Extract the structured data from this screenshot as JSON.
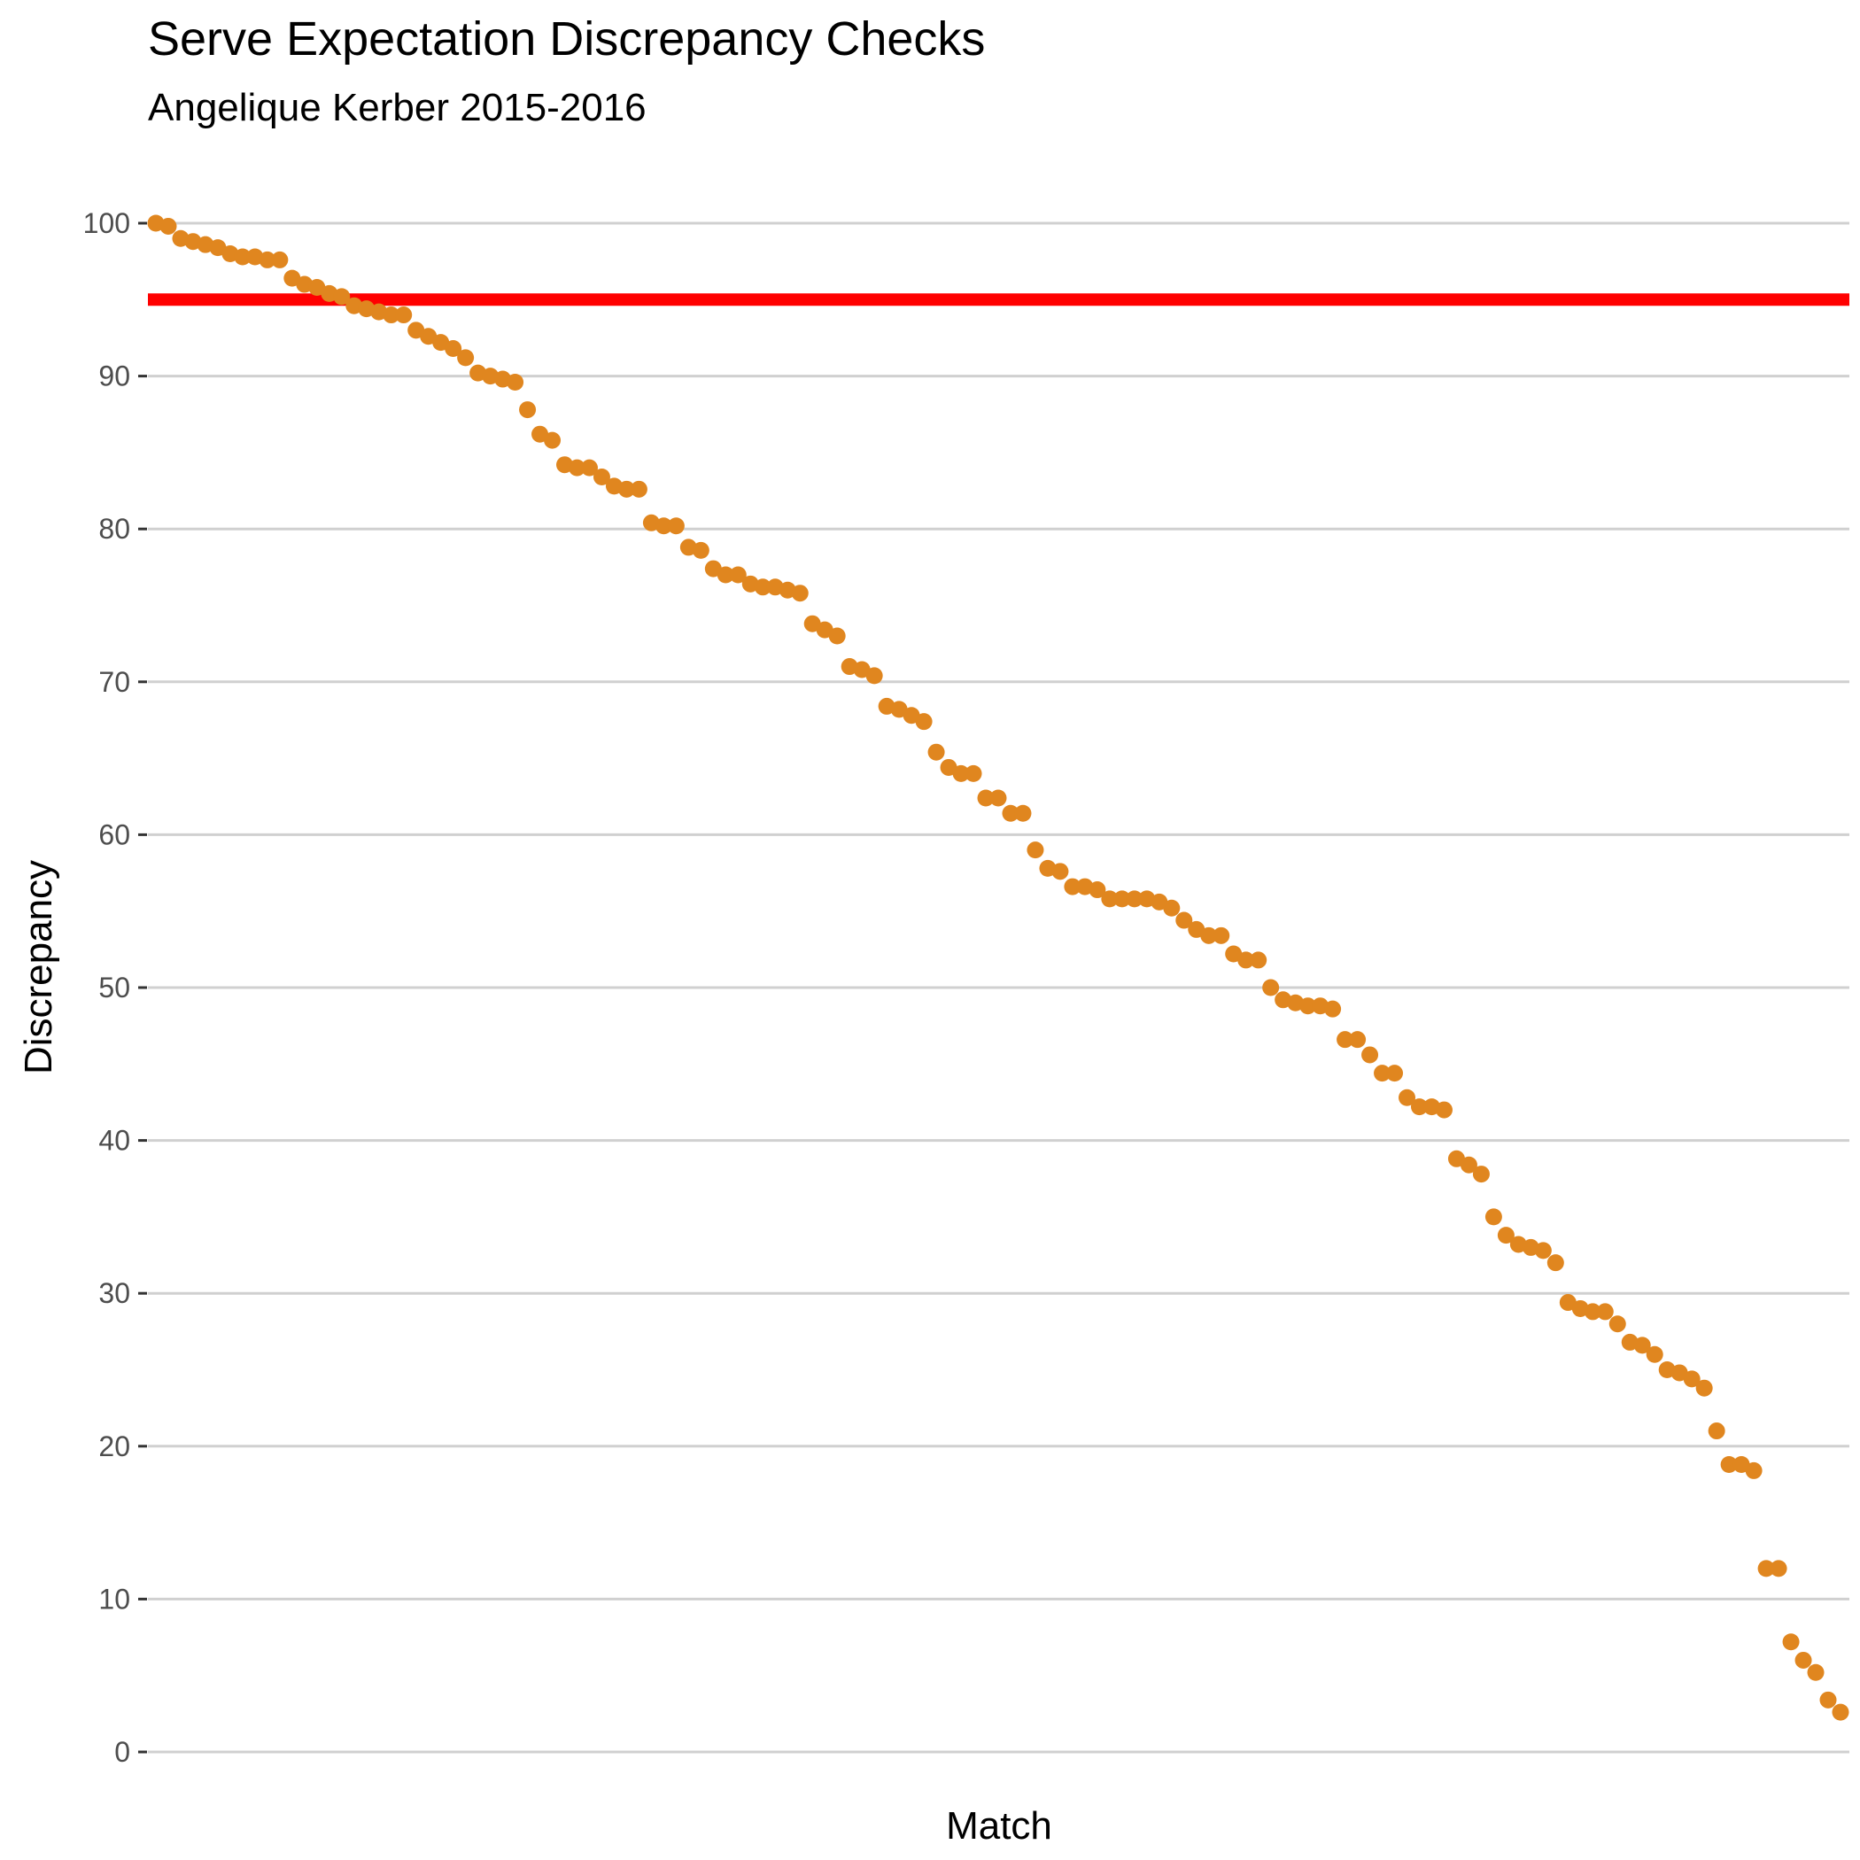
{
  "chart_data": {
    "type": "scatter",
    "title": "Serve Expectation Discrepancy Checks",
    "subtitle": "Angelique Kerber 2015-2016",
    "xlabel": "Match",
    "ylabel": "Discrepancy",
    "ylim": [
      0,
      100
    ],
    "y_ticks": [
      0,
      10,
      20,
      30,
      40,
      50,
      60,
      70,
      80,
      90,
      100
    ],
    "y_tick_labels": [
      "0",
      "10",
      "20",
      "30",
      "40",
      "50",
      "60",
      "70",
      "80",
      "90",
      "100"
    ],
    "grid": "horizontal",
    "x_ticks_shown": false,
    "reference_line": {
      "y": 95,
      "color": "#ff0000"
    },
    "point_color": "#e0861f",
    "series": [
      {
        "values": [
          100.0,
          99.8,
          99.0,
          98.8,
          98.6,
          98.4,
          98.0,
          97.8,
          97.8,
          97.6,
          97.6,
          96.4,
          96.0,
          95.8,
          95.4,
          95.2,
          94.6,
          94.4,
          94.2,
          94.0,
          94.0,
          93.0,
          92.6,
          92.2,
          91.8,
          91.2,
          90.2,
          90.0,
          89.8,
          89.6,
          87.8,
          86.2,
          85.8,
          84.2,
          84.0,
          84.0,
          83.4,
          82.8,
          82.6,
          82.6,
          80.4,
          80.2,
          80.2,
          78.8,
          78.6,
          77.4,
          77.0,
          77.0,
          76.4,
          76.2,
          76.2,
          76.0,
          75.8,
          73.8,
          73.4,
          73.0,
          71.0,
          70.8,
          70.4,
          68.4,
          68.2,
          67.8,
          67.4,
          65.4,
          64.4,
          64.0,
          64.0,
          62.4,
          62.4,
          61.4,
          61.4,
          59.0,
          57.8,
          57.6,
          56.6,
          56.6,
          56.4,
          55.8,
          55.8,
          55.8,
          55.8,
          55.6,
          55.2,
          54.4,
          53.8,
          53.4,
          53.4,
          52.2,
          51.8,
          51.8,
          50.0,
          49.2,
          49.0,
          48.8,
          48.8,
          48.6,
          46.6,
          46.6,
          45.6,
          44.4,
          44.4,
          42.8,
          42.2,
          42.2,
          42.0,
          38.8,
          38.4,
          37.8,
          35.0,
          33.8,
          33.2,
          33.0,
          32.8,
          32.0,
          29.4,
          29.0,
          28.8,
          28.8,
          28.0,
          26.8,
          26.6,
          26.0,
          25.0,
          24.8,
          24.4,
          23.8,
          21.0,
          18.8,
          18.8,
          18.4,
          12.0,
          12.0,
          7.2,
          6.0,
          5.2,
          3.4,
          2.6
        ]
      }
    ]
  }
}
